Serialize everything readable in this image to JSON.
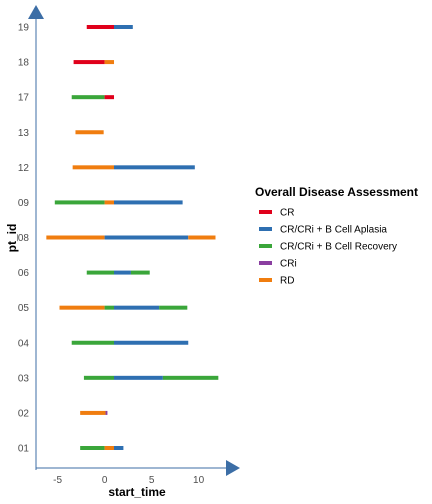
{
  "chart_data": {
    "type": "swimmer",
    "xlabel": "start_time",
    "ylabel": "pt_id",
    "xlim": [
      -7.3,
      14.3
    ],
    "x_ticks": [
      -5,
      0,
      5,
      10
    ],
    "x_tick_labels": [
      "-5",
      "0",
      "5",
      "10"
    ],
    "categories": [
      "01",
      "02",
      "03",
      "04",
      "05",
      "06",
      "08",
      "09",
      "12",
      "13",
      "17",
      "18",
      "19"
    ],
    "legend": {
      "title": "Overall Disease Assessment",
      "entries": [
        {
          "name": "CR",
          "color": "#e0001b"
        },
        {
          "name": "CR/CRi + B Cell Aplasia",
          "color": "#2e6fb1"
        },
        {
          "name": "CR/CRi + B Cell Recovery",
          "color": "#3aa63a"
        },
        {
          "name": "CRi",
          "color": "#8a3ea0"
        },
        {
          "name": "RD",
          "color": "#f07d0f"
        }
      ]
    },
    "rows": [
      {
        "pt_id": "01",
        "segments": [
          {
            "status": "CR/CRi + B Cell Recovery",
            "start": -2.6,
            "end": 0.0
          },
          {
            "status": "RD",
            "start": 0.0,
            "end": 1.0
          },
          {
            "status": "CR/CRi + B Cell Aplasia",
            "start": 1.0,
            "end": 2.0
          }
        ]
      },
      {
        "pt_id": "02",
        "segments": [
          {
            "status": "RD",
            "start": -2.6,
            "end": 0.1
          },
          {
            "status": "CRi",
            "start": 0.1,
            "end": 0.3
          }
        ]
      },
      {
        "pt_id": "03",
        "segments": [
          {
            "status": "CR/CRi + B Cell Recovery",
            "start": -2.2,
            "end": 1.0
          },
          {
            "status": "CR/CRi + B Cell Aplasia",
            "start": 1.0,
            "end": 6.2
          },
          {
            "status": "CR/CRi + B Cell Recovery",
            "start": 6.2,
            "end": 12.1
          }
        ]
      },
      {
        "pt_id": "04",
        "segments": [
          {
            "status": "CR/CRi + B Cell Recovery",
            "start": -3.5,
            "end": 1.0
          },
          {
            "status": "CR/CRi + B Cell Aplasia",
            "start": 1.0,
            "end": 8.9
          }
        ]
      },
      {
        "pt_id": "05",
        "segments": [
          {
            "status": "RD",
            "start": -4.8,
            "end": 0.0
          },
          {
            "status": "CR/CRi + B Cell Recovery",
            "start": 0.0,
            "end": 1.0
          },
          {
            "status": "CR/CRi + B Cell Aplasia",
            "start": 1.0,
            "end": 5.8
          },
          {
            "status": "CR/CRi + B Cell Recovery",
            "start": 5.8,
            "end": 8.8
          }
        ]
      },
      {
        "pt_id": "06",
        "segments": [
          {
            "status": "CR/CRi + B Cell Recovery",
            "start": -1.9,
            "end": 1.0
          },
          {
            "status": "CR/CRi + B Cell Aplasia",
            "start": 1.0,
            "end": 2.8
          },
          {
            "status": "CR/CRi + B Cell Recovery",
            "start": 2.8,
            "end": 4.8
          }
        ]
      },
      {
        "pt_id": "08",
        "segments": [
          {
            "status": "RD",
            "start": -6.2,
            "end": 0.0
          },
          {
            "status": "CR/CRi + B Cell Aplasia",
            "start": 0.0,
            "end": 8.9
          },
          {
            "status": "RD",
            "start": 8.9,
            "end": 11.8
          }
        ]
      },
      {
        "pt_id": "09",
        "segments": [
          {
            "status": "CR/CRi + B Cell Recovery",
            "start": -5.3,
            "end": 0.0
          },
          {
            "status": "RD",
            "start": 0.0,
            "end": 1.0
          },
          {
            "status": "CR/CRi + B Cell Aplasia",
            "start": 1.0,
            "end": 8.3
          }
        ]
      },
      {
        "pt_id": "12",
        "segments": [
          {
            "status": "RD",
            "start": -3.4,
            "end": 1.0
          },
          {
            "status": "CR/CRi + B Cell Aplasia",
            "start": 1.0,
            "end": 9.6
          }
        ]
      },
      {
        "pt_id": "13",
        "segments": [
          {
            "status": "RD",
            "start": -3.1,
            "end": -0.1
          }
        ]
      },
      {
        "pt_id": "17",
        "segments": [
          {
            "status": "CR/CRi + B Cell Recovery",
            "start": -3.5,
            "end": 0.0
          },
          {
            "status": "CR",
            "start": 0.0,
            "end": 1.0
          }
        ]
      },
      {
        "pt_id": "18",
        "segments": [
          {
            "status": "CR",
            "start": -3.3,
            "end": 0.0
          },
          {
            "status": "RD",
            "start": 0.0,
            "end": 1.0
          }
        ]
      },
      {
        "pt_id": "19",
        "segments": [
          {
            "status": "CR",
            "start": -1.9,
            "end": 1.0
          },
          {
            "status": "CR/CRi + B Cell Aplasia",
            "start": 1.0,
            "end": 3.0
          }
        ]
      }
    ]
  }
}
